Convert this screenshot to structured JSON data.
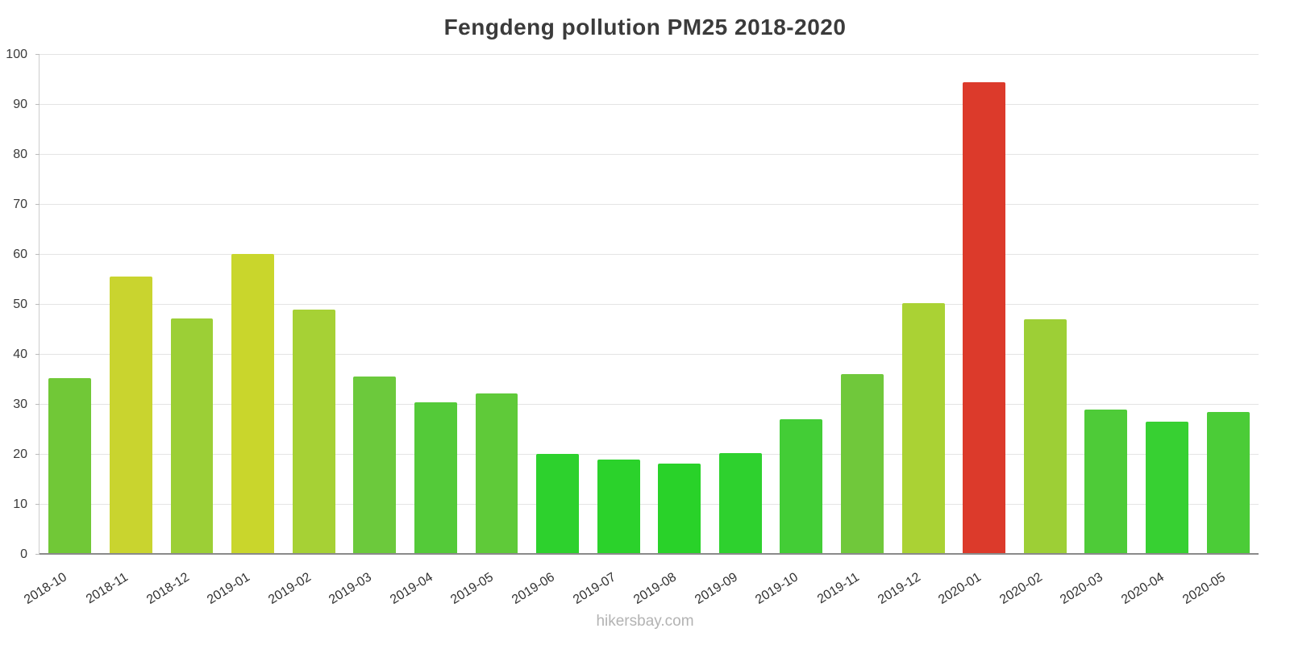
{
  "title": "Fengdeng pollution PM25 2018-2020",
  "footer": "hikersbay.com",
  "chart_data": {
    "type": "bar",
    "title": "Fengdeng pollution PM25 2018-2020",
    "categories": [
      "2018-10",
      "2018-11",
      "2018-12",
      "2019-01",
      "2019-02",
      "2019-03",
      "2019-04",
      "2019-05",
      "2019-06",
      "2019-07",
      "2019-08",
      "2019-09",
      "2019-10",
      "2019-11",
      "2019-12",
      "2020-01",
      "2020-02",
      "2020-03",
      "2020-04",
      "2020-05"
    ],
    "values": [
      35.3,
      55.6,
      47.2,
      60.2,
      49.1,
      35.6,
      30.5,
      32.2,
      20.1,
      19.1,
      18.3,
      20.4,
      27.1,
      36.1,
      50.4,
      94.5,
      47.1,
      29.0,
      26.6,
      28.5
    ],
    "colors": [
      "#71c837",
      "#c9d42f",
      "#9ccf36",
      "#c9d62c",
      "#a6d135",
      "#6cc93c",
      "#54ca39",
      "#5fca39",
      "#2dd12d",
      "#2bd22b",
      "#29d229",
      "#2ed12e",
      "#43cd36",
      "#70c83b",
      "#aad234",
      "#dc3a2b",
      "#9dcf36",
      "#4ecb38",
      "#37d032",
      "#4bcc37"
    ],
    "xlabel": "",
    "ylabel": "",
    "ylim": [
      0,
      100
    ],
    "y_ticks": [
      0,
      10,
      20,
      30,
      40,
      50,
      60,
      70,
      80,
      90,
      100
    ],
    "grid": "horizontal",
    "legend": "none"
  }
}
